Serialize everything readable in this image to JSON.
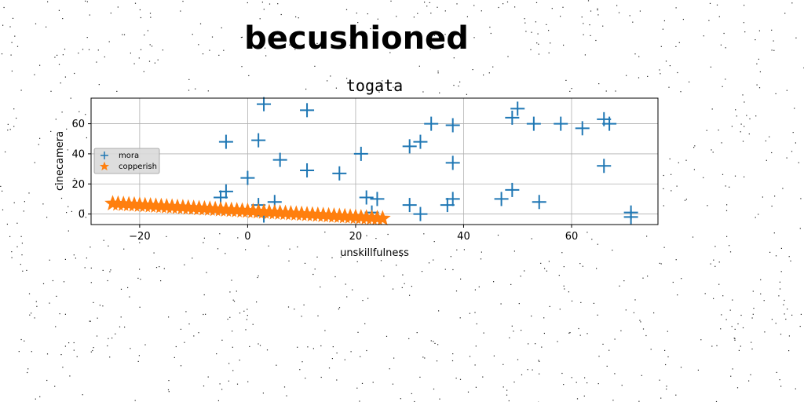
{
  "colors": {
    "series_mora": "#1f77b4",
    "series_copperish": "#ff7f0e",
    "grid": "#b0b0b0"
  },
  "chart_data": {
    "type": "scatter",
    "suptitle": "becushioned",
    "title": "togata",
    "xlabel": "unskillfulness",
    "ylabel": "cinecamera",
    "xlim": [
      -29,
      76
    ],
    "ylim": [
      -7,
      77
    ],
    "xticks": [
      -20,
      0,
      20,
      40,
      60
    ],
    "yticks": [
      0,
      20,
      40,
      60
    ],
    "grid": true,
    "legend_position": "center-left",
    "series": [
      {
        "name": "mora",
        "marker": "plus",
        "color": "#1f77b4",
        "x": [
          3,
          11,
          49,
          50,
          34,
          38,
          53,
          58,
          62,
          66,
          67,
          -4,
          2,
          6,
          11,
          17,
          21,
          30,
          32,
          38,
          66,
          0,
          -5,
          -4,
          22,
          24,
          5,
          2,
          30,
          37,
          38,
          47,
          49,
          54,
          71,
          71,
          3,
          23,
          32
        ],
        "y": [
          73,
          69,
          64,
          70,
          60,
          59,
          60,
          60,
          57,
          63,
          60,
          48,
          49,
          36,
          29,
          27,
          40,
          45,
          48,
          34,
          32,
          24,
          11,
          15,
          11,
          10,
          8,
          6,
          6,
          6,
          10,
          10,
          16,
          8,
          1,
          -2,
          -1,
          1,
          0
        ]
      },
      {
        "name": "copperish",
        "marker": "star",
        "color": "#ff7f0e",
        "x": [
          -25,
          -24,
          -23,
          -22,
          -21,
          -20,
          -19,
          -18,
          -17,
          -16,
          -15,
          -14,
          -13,
          -12,
          -11,
          -10,
          -9,
          -8,
          -7,
          -6,
          -5,
          -4,
          -3,
          -2,
          -1,
          0,
          1,
          2,
          3,
          4,
          5,
          6,
          7,
          8,
          9,
          10,
          11,
          12,
          13,
          14,
          15,
          16,
          17,
          18,
          19,
          20,
          21,
          22,
          23,
          24,
          25
        ],
        "y": [
          7,
          6.8,
          6.6,
          6.4,
          6.2,
          6,
          5.8,
          5.6,
          5.4,
          5.2,
          5,
          4.8,
          4.6,
          4.4,
          4.2,
          4,
          3.8,
          3.6,
          3.4,
          3.2,
          3,
          2.8,
          2.6,
          2.4,
          2.2,
          2,
          1.8,
          1.6,
          1.4,
          1.2,
          1,
          0.8,
          0.6,
          0.4,
          0.2,
          0,
          -0.2,
          -0.4,
          -0.6,
          -0.8,
          -1,
          -1.2,
          -1.4,
          -1.6,
          -1.8,
          -2,
          -2.2,
          -2.4,
          -2.6,
          -2.8,
          -3
        ]
      }
    ]
  }
}
